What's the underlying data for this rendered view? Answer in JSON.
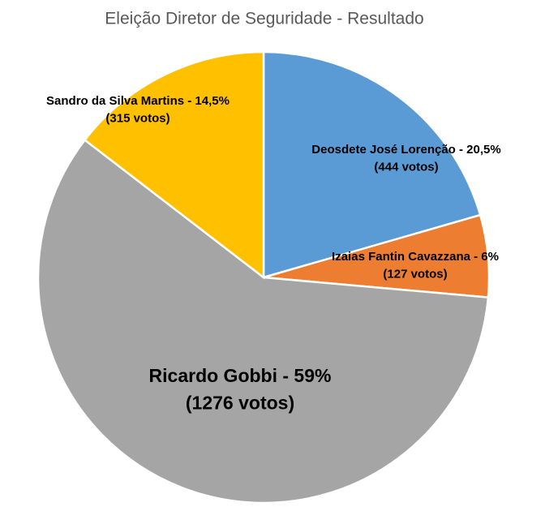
{
  "chart_data": {
    "type": "pie",
    "title": "Eleição Diretor de Seguridade - Resultado",
    "categories": [
      "Deosdete José Lorenção - 20,5%",
      "Izaias Fantin Cavazzana - 6%",
      "Ricardo Gobbi - 59%",
      "Sandro da Silva Martins - 14,5%"
    ],
    "values": [
      444,
      127,
      1276,
      315
    ],
    "value_labels": [
      "(444 votos)",
      "(127 votos)",
      "(1276 votos)",
      "(315 votos)"
    ],
    "colors": [
      "#5b9bd5",
      "#ed7d31",
      "#a5a5a5",
      "#ffc000"
    ]
  }
}
